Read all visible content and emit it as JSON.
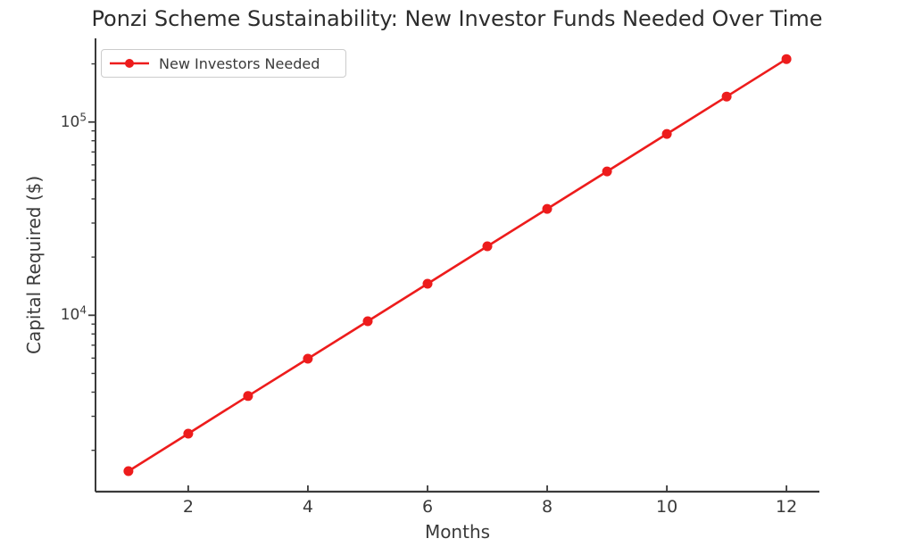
{
  "chart_data": {
    "type": "line",
    "title": "Ponzi Scheme Sustainability: New Investor Funds Needed Over Time",
    "xlabel": "Months",
    "ylabel": "Capital Required ($)",
    "yscale": "log",
    "grid": false,
    "legend_position": "upper-left",
    "x": [
      1,
      2,
      3,
      4,
      5,
      6,
      7,
      8,
      9,
      10,
      11,
      12
    ],
    "series": [
      {
        "name": "New Investors Needed",
        "marker": "circle",
        "values": [
          1560,
          2440,
          3820,
          5960,
          9310,
          14550,
          22740,
          35530,
          55510,
          86740,
          135530,
          211760
        ]
      }
    ],
    "xlim": [
      0.45,
      12.55
    ],
    "ylim": [
      1222,
      271000
    ],
    "xticks": [
      2,
      4,
      6,
      8,
      10,
      12
    ],
    "yticks_major": [
      {
        "value": 10000,
        "base": "10",
        "exponent": "4"
      },
      {
        "value": 100000,
        "base": "10",
        "exponent": "5"
      }
    ]
  },
  "colors": {
    "line": "#ed1c1c",
    "marker": "#ed1c1c",
    "spine": "#3a3a3a",
    "tick": "#3a3a3a",
    "text": "#3a3a3a",
    "title": "#2c2c2c",
    "legend_border": "#cccccc",
    "background": "#ffffff"
  }
}
